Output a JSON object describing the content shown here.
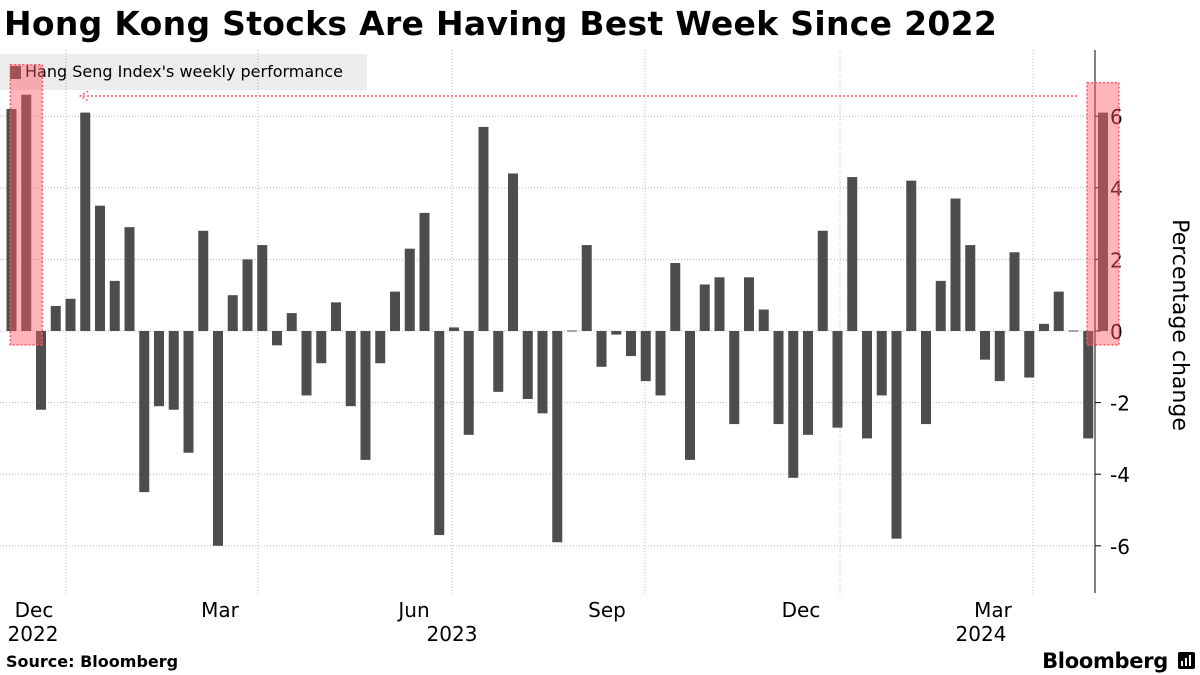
{
  "title": "Hong Kong Stocks Are Having Best Week Since 2022",
  "source": "Source: Bloomberg",
  "brand": "Bloomberg",
  "colors": {
    "bar": "#4d4d4d",
    "highlight": "#ff5a64",
    "grid": "#b8b8b8"
  },
  "chart_data": {
    "type": "bar",
    "title": "Hong Kong Stocks Are Having Best Week Since 2022",
    "ylabel": "Percentage change",
    "ylim": [
      -7.5,
      7.7
    ],
    "yticks": [
      -6,
      -4,
      -2,
      0,
      2,
      4,
      6
    ],
    "grid": true,
    "legend": "top-left",
    "series": [
      {
        "name": "Hang Seng Index's weekly performance",
        "x_start": "2022-11-18",
        "x_step_days": 7,
        "values": [
          6.2,
          6.6,
          -2.2,
          0.7,
          0.9,
          6.1,
          3.5,
          1.4,
          2.9,
          -4.5,
          -2.1,
          -2.2,
          -3.4,
          2.8,
          -6.0,
          1.0,
          2.0,
          2.4,
          -0.4,
          0.5,
          -1.8,
          -0.9,
          0.8,
          -2.1,
          -3.6,
          -0.9,
          1.1,
          2.3,
          3.3,
          -5.7,
          0.1,
          -2.9,
          5.7,
          -1.7,
          4.4,
          -1.9,
          -2.3,
          -5.9,
          0.0,
          2.4,
          -1.0,
          -0.1,
          -0.7,
          -1.4,
          -1.8,
          1.9,
          -3.6,
          1.3,
          1.5,
          -2.6,
          1.5,
          0.6,
          -2.6,
          -4.1,
          -2.9,
          2.8,
          -2.7,
          4.3,
          -3.0,
          -1.8,
          -5.8,
          4.2,
          -2.6,
          1.4,
          3.7,
          2.4,
          -0.8,
          -1.4,
          2.2,
          -1.3,
          0.2,
          1.1,
          0.0,
          -3.0,
          6.1
        ]
      }
    ],
    "x_ticks": [
      {
        "month": "Dec",
        "year": "2022"
      },
      {
        "month": "Mar",
        "year": ""
      },
      {
        "month": "Jun",
        "year": "2023"
      },
      {
        "month": "Sep",
        "year": ""
      },
      {
        "month": "Dec",
        "year": ""
      },
      {
        "month": "Mar",
        "year": "2024"
      }
    ],
    "highlighted_bars": [
      1,
      74
    ],
    "annotation": {
      "type": "dotted-arrow",
      "from_bar": 74,
      "to_bar": 1
    }
  }
}
